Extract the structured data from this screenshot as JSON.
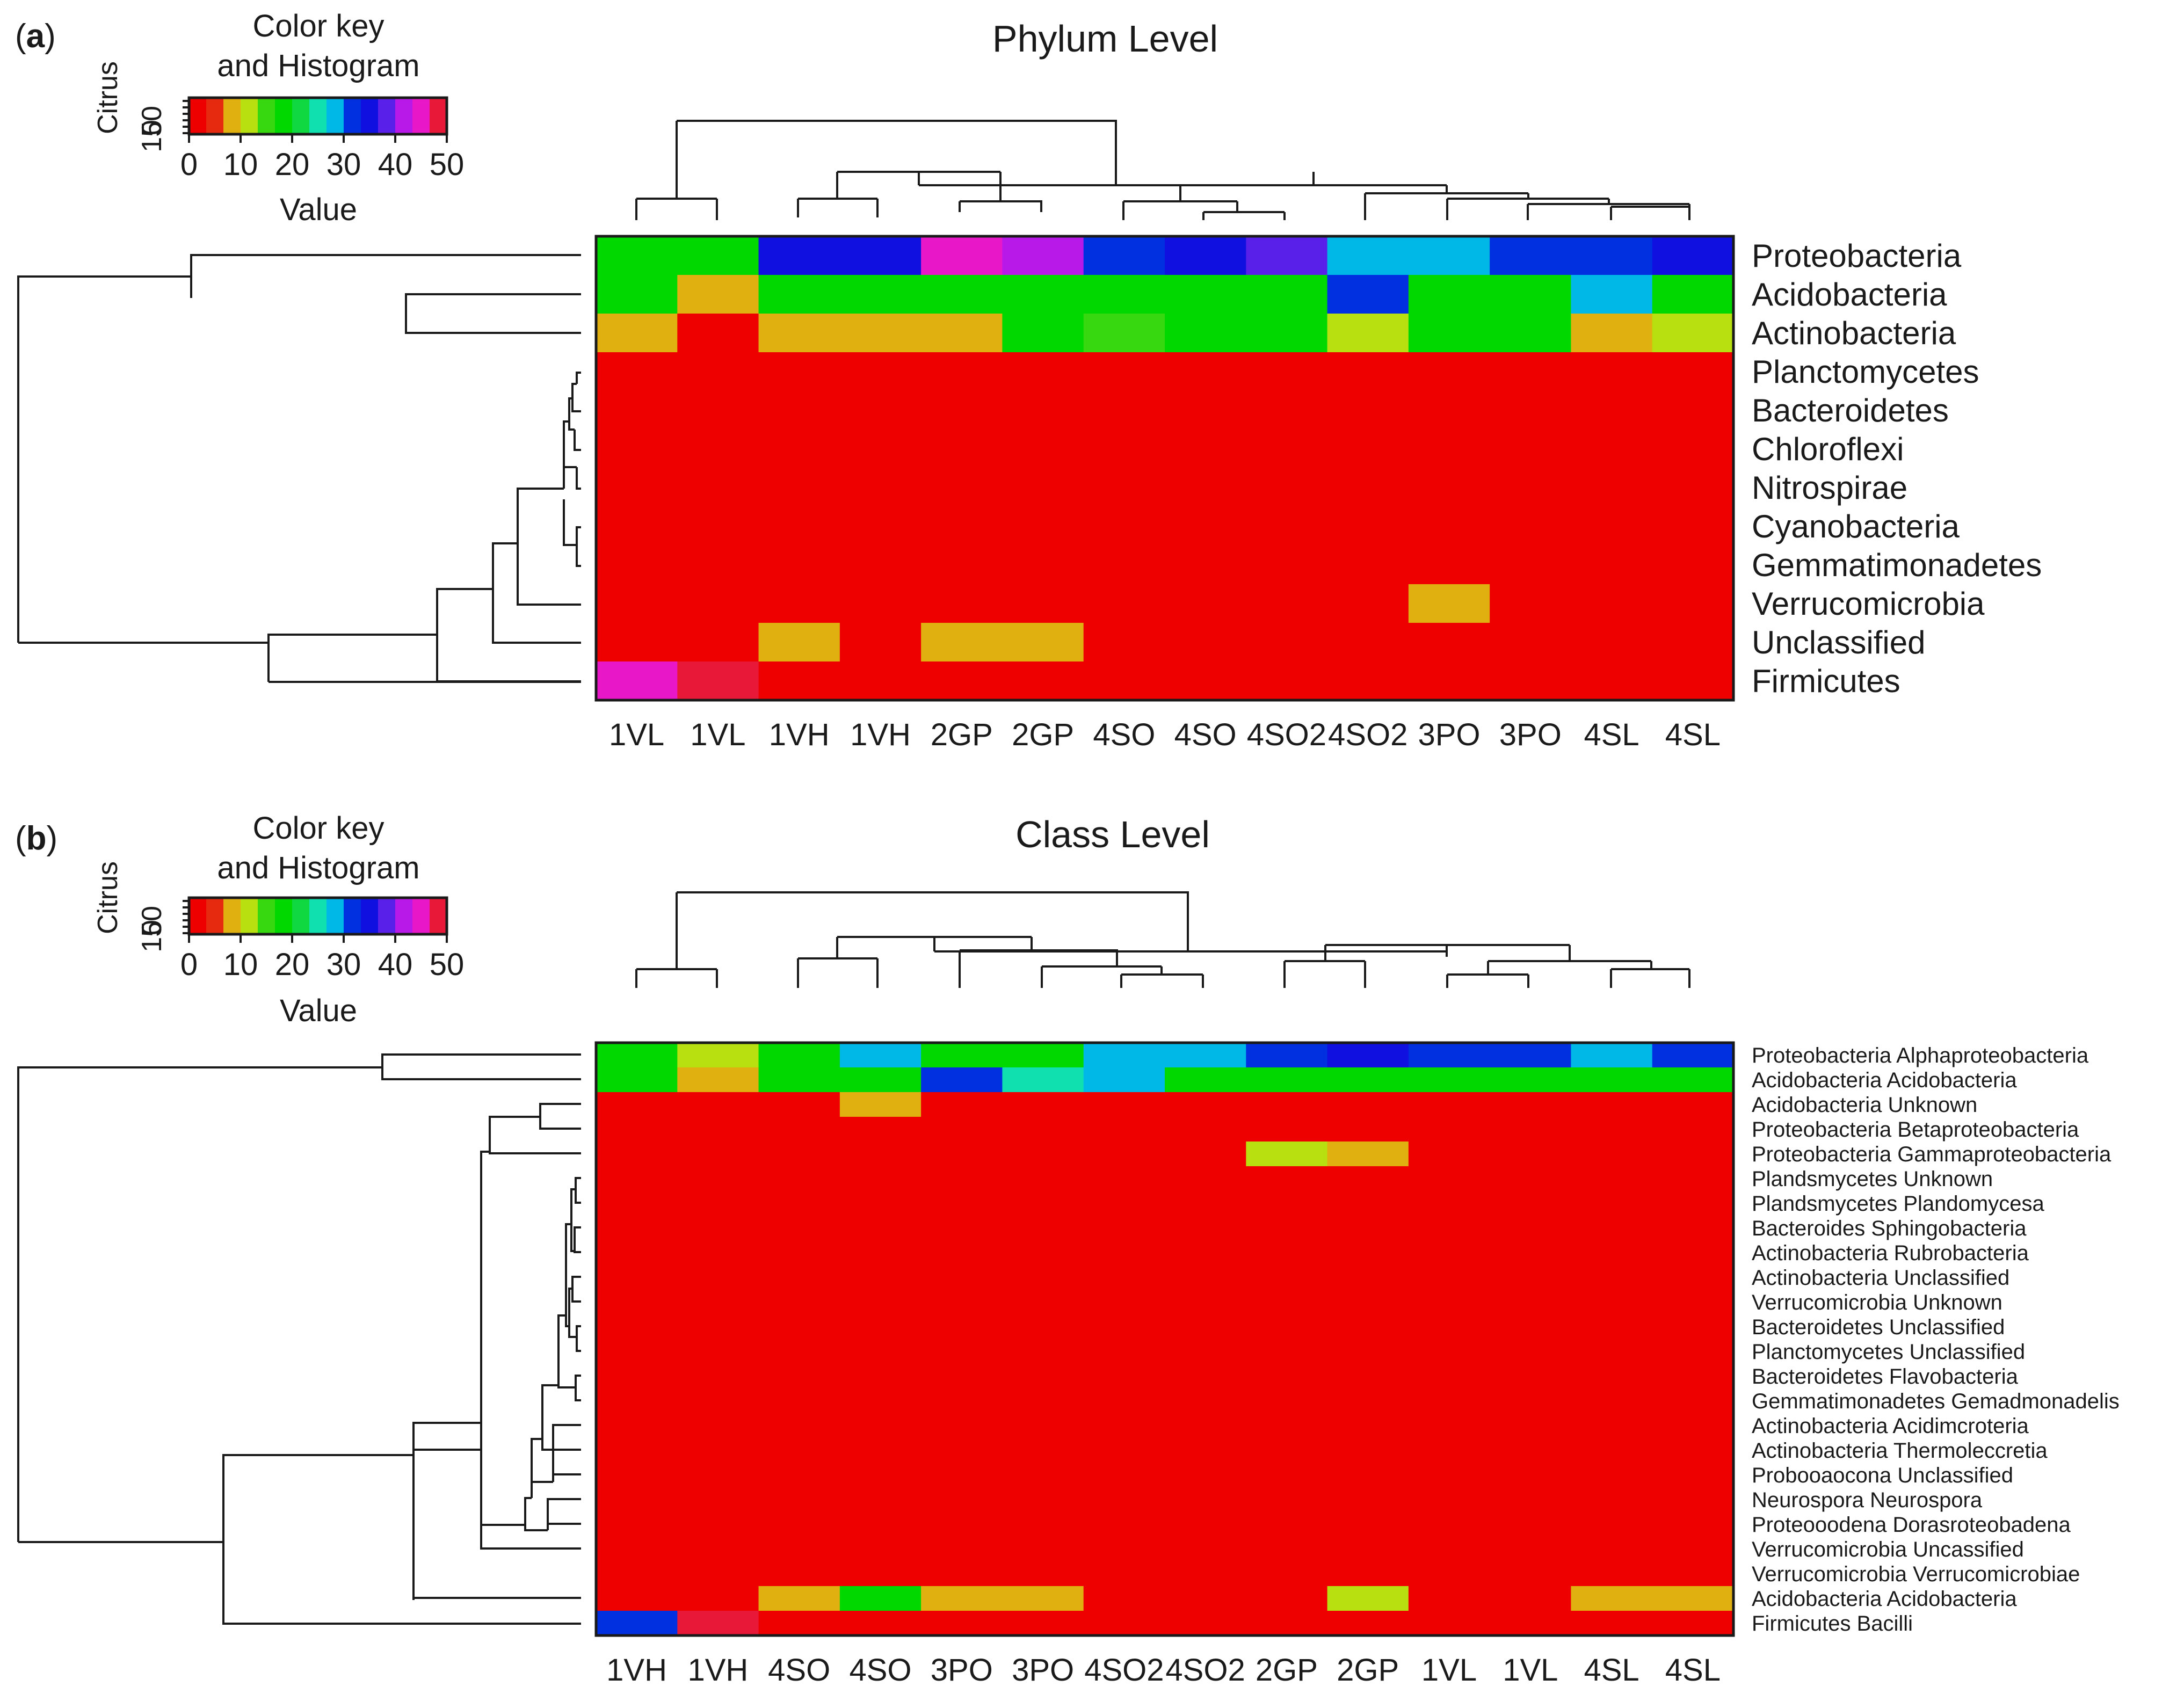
{
  "chart_data": [
    {
      "type": "heatmap",
      "panel": "(a)",
      "panel_letter": "a",
      "title": "Phylum Level",
      "color_key": {
        "title_line1": "Color key",
        "title_line2": "and Histogram",
        "xlabel": "Value",
        "ylabel": "Citrus",
        "y_ticks": [
          "0",
          "150"
        ],
        "x_ticks": [
          "0",
          "10",
          "20",
          "30",
          "40",
          "50"
        ],
        "range": [
          0,
          50
        ],
        "colors": [
          "#ee0000",
          "#e62a10",
          "#e0b010",
          "#b8e010",
          "#38d810",
          "#00d800",
          "#10d840",
          "#10e0b0",
          "#00b8e8",
          "#0030e0",
          "#1010e0",
          "#5820e8",
          "#b818e8",
          "#e818c8",
          "#e81838"
        ]
      },
      "columns": [
        "1VL",
        "1VL",
        "1VH",
        "1VH",
        "2GP",
        "2GP",
        "4SO",
        "4SO",
        "4SO2",
        "4SO2",
        "3PO",
        "3PO",
        "4SL",
        "4SL"
      ],
      "rows": [
        "Proteobacteria",
        "Acidobacteria",
        "Actinobacteria",
        "Planctomycetes",
        "Bacteroidetes",
        "Chloroflexi",
        "Nitrospirae",
        "Cyanobacteria",
        "Gemmatimonadetes",
        "Verrucomicrobia",
        "Unclassified",
        "Firmicutes"
      ],
      "values": [
        [
          17,
          18,
          35,
          35,
          45,
          41,
          32,
          34,
          37,
          27,
          29,
          32,
          32,
          34
        ],
        [
          17,
          7,
          17,
          17,
          18,
          18,
          19,
          19,
          19,
          32,
          17,
          17,
          28,
          17
        ],
        [
          7,
          2,
          7,
          7,
          7,
          17,
          16,
          19,
          18,
          12,
          17,
          17,
          7,
          12
        ],
        [
          0,
          0,
          0,
          0,
          0,
          0,
          0,
          0,
          0,
          0,
          0,
          0,
          0,
          0
        ],
        [
          0,
          0,
          0,
          0,
          0,
          0,
          0,
          0,
          0,
          0,
          0,
          0,
          0,
          0
        ],
        [
          0,
          0,
          0,
          0,
          0,
          0,
          0,
          0,
          0,
          0,
          0,
          0,
          0,
          0
        ],
        [
          0,
          0,
          0,
          0,
          0,
          0,
          0,
          0,
          0,
          0,
          0,
          0,
          0,
          0
        ],
        [
          0,
          0,
          0,
          0,
          0,
          0,
          0,
          0,
          0,
          0,
          0,
          0,
          0,
          0
        ],
        [
          0,
          0,
          0,
          0,
          0,
          0,
          0,
          0,
          0,
          0,
          0,
          0,
          0,
          0
        ],
        [
          0,
          0,
          0,
          0,
          0,
          0,
          2,
          0,
          2,
          0,
          7,
          0,
          2,
          2
        ],
        [
          1,
          1,
          7,
          2,
          7,
          7,
          2,
          1,
          1,
          2,
          2,
          2,
          1,
          1
        ],
        [
          44,
          49,
          1,
          2,
          1,
          1,
          1,
          1,
          2,
          1,
          1,
          2,
          1,
          1
        ]
      ]
    },
    {
      "type": "heatmap",
      "panel": "(b)",
      "panel_letter": "b",
      "title": "Class Level",
      "color_key": {
        "title_line1": "Color key",
        "title_line2": "and Histogram",
        "xlabel": "Value",
        "ylabel": "Citrus",
        "y_ticks": [
          "0",
          "150"
        ],
        "x_ticks": [
          "0",
          "10",
          "20",
          "30",
          "40",
          "50"
        ],
        "range": [
          0,
          50
        ],
        "colors": [
          "#ee0000",
          "#e62a10",
          "#e0b010",
          "#b8e010",
          "#38d810",
          "#00d800",
          "#10d840",
          "#10e0b0",
          "#00b8e8",
          "#0030e0",
          "#1010e0",
          "#5820e8",
          "#b818e8",
          "#e818c8",
          "#e81838"
        ]
      },
      "columns": [
        "1VH",
        "1VH",
        "4SO",
        "4SO",
        "3PO",
        "3PO",
        "4SO2",
        "4SO2",
        "2GP",
        "2GP",
        "1VL",
        "1VL",
        "4SL",
        "4SL"
      ],
      "rows": [
        "Proteobacteria Alphaproteobacteria",
        "Acidobacteria Acidobacteria",
        "Acidobacteria Unknown",
        "Proteobacteria Betaproteobacteria",
        "Proteobacteria Gammaproteobacteria",
        "Plandsmycetes Unknown",
        "Plandsmycetes Plandomycesa",
        "Bacteroides Sphingobacteria",
        "Actinobacteria Rubrobacteria",
        "Actinobacteria Unclassified",
        "Verrucomicrobia Unknown",
        "Bacteroidetes Unclassified",
        "Planctomycetes Unclassified",
        "Bacteroidetes Flavobacteria",
        "Gemmatimonadetes Gemadmonadelis",
        "Actinobacteria Acidimcroteria",
        "Actinobacteria Thermoleccretia",
        "Probooaocona Unclassified",
        "Neurospora Neurospora",
        "Proteooodena Dorasroteobadena",
        "Verrucomicrobia Uncassified",
        "Verrucomicrobia Verrucomicrobiae",
        "Acidobacteria Acidobacteria",
        "Firmicutes Bacilli"
      ],
      "values": [
        [
          17,
          12,
          17,
          27,
          18,
          18,
          27,
          27,
          32,
          35,
          32,
          32,
          28,
          32
        ],
        [
          17,
          7,
          18,
          19,
          32,
          25,
          28,
          18,
          18,
          18,
          17,
          17,
          19,
          17
        ],
        [
          1,
          1,
          2,
          7,
          2,
          1,
          1,
          1,
          1,
          1,
          1,
          1,
          2,
          2
        ],
        [
          1,
          2,
          2,
          2,
          1,
          2,
          2,
          2,
          1,
          1,
          1,
          1,
          2,
          2
        ],
        [
          1,
          1,
          1,
          1,
          1,
          1,
          1,
          1,
          12,
          7,
          2,
          2,
          1,
          1
        ],
        [
          0,
          0,
          0,
          0,
          0,
          0,
          0,
          0,
          0,
          0,
          0,
          0,
          0,
          0
        ],
        [
          0,
          0,
          0,
          0,
          0,
          0,
          0,
          0,
          0,
          0,
          0,
          0,
          0,
          0
        ],
        [
          0,
          0,
          0,
          0,
          0,
          0,
          0,
          0,
          0,
          0,
          0,
          0,
          0,
          0
        ],
        [
          0,
          0,
          0,
          0,
          0,
          0,
          0,
          0,
          0,
          0,
          0,
          0,
          0,
          0
        ],
        [
          0,
          0,
          0,
          0,
          0,
          0,
          0,
          0,
          0,
          0,
          0,
          0,
          0,
          0
        ],
        [
          0,
          0,
          0,
          0,
          0,
          0,
          0,
          0,
          0,
          0,
          0,
          0,
          0,
          0
        ],
        [
          0,
          0,
          0,
          0,
          0,
          0,
          0,
          0,
          0,
          0,
          0,
          0,
          0,
          0
        ],
        [
          0,
          0,
          0,
          0,
          0,
          0,
          0,
          0,
          0,
          0,
          0,
          0,
          0,
          0
        ],
        [
          0,
          0,
          0,
          0,
          0,
          0,
          0,
          0,
          0,
          0,
          0,
          0,
          0,
          0
        ],
        [
          0,
          0,
          0,
          0,
          0,
          0,
          0,
          0,
          0,
          0,
          0,
          0,
          0,
          0
        ],
        [
          0,
          0,
          0,
          0,
          0,
          0,
          0,
          0,
          0,
          0,
          0,
          0,
          0,
          0
        ],
        [
          0,
          0,
          0,
          0,
          0,
          0,
          0,
          0,
          0,
          0,
          0,
          0,
          0,
          0
        ],
        [
          0,
          0,
          0,
          0,
          0,
          0,
          0,
          0,
          0,
          0,
          0,
          0,
          0,
          0
        ],
        [
          0,
          0,
          0,
          0,
          0,
          0,
          0,
          0,
          0,
          0,
          0,
          0,
          0,
          0
        ],
        [
          0,
          0,
          2,
          2,
          0,
          0,
          0,
          0,
          0,
          0,
          0,
          0,
          0,
          0
        ],
        [
          0,
          0,
          2,
          0,
          0,
          0,
          0,
          0,
          0,
          0,
          0,
          0,
          0,
          0
        ],
        [
          1,
          1,
          1,
          1,
          1,
          1,
          1,
          1,
          1,
          1,
          1,
          1,
          1,
          1
        ],
        [
          2,
          2,
          7,
          17,
          7,
          7,
          2,
          2,
          2,
          12,
          2,
          2,
          7,
          7
        ],
        [
          32,
          49,
          1,
          1,
          1,
          2,
          1,
          1,
          1,
          1,
          1,
          2,
          1,
          1
        ]
      ]
    }
  ]
}
